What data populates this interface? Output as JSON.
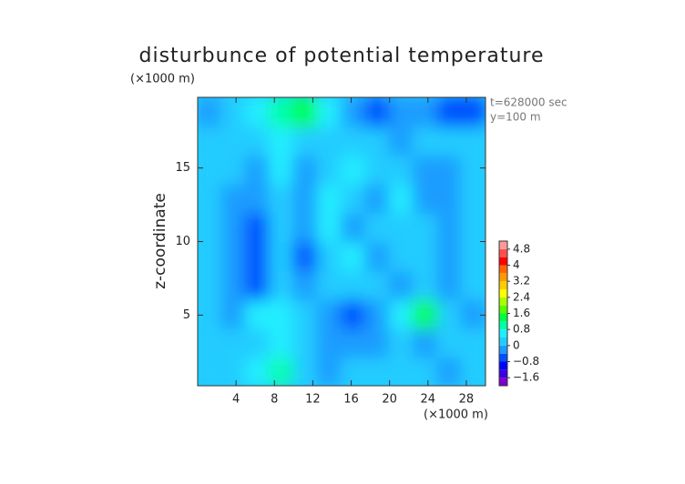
{
  "chart_data": {
    "type": "contour",
    "title": "disturbunce of potential temperature",
    "y_unit": "(×1000 m)",
    "x_unit": "(×1000 m)",
    "ylabel": "z-coordinate",
    "annotations": [
      "t=628000 sec",
      "y=100 m"
    ],
    "xlim": [
      0,
      30
    ],
    "ylim": [
      0.2,
      19.8
    ],
    "xticks": [
      4,
      8,
      12,
      16,
      20,
      24,
      28
    ],
    "yticks": [
      5,
      10,
      15
    ],
    "field": [
      [
        0.2,
        0.2,
        0.4,
        0.8,
        0.2,
        -0.2,
        0.2,
        0.2,
        0,
        0,
        -0.2,
        0.2
      ],
      [
        0.2,
        0.2,
        0.2,
        0.4,
        0,
        -0.2,
        -0.4,
        -0.2,
        0,
        -0.4,
        0,
        0.2
      ],
      [
        0,
        -0.2,
        0.4,
        0.4,
        0,
        -0.4,
        -0.8,
        -0.4,
        0.6,
        1.2,
        0,
        -0.2
      ],
      [
        0,
        -0.4,
        -0.6,
        0.2,
        -0.4,
        0,
        0.2,
        0.2,
        -0.4,
        0.2,
        -0.4,
        0
      ],
      [
        0.2,
        -0.4,
        -0.6,
        0.2,
        -0.6,
        0.2,
        0.4,
        -0.4,
        0,
        0.2,
        -0.4,
        0.2
      ],
      [
        0.2,
        -0.2,
        -0.6,
        0.2,
        -0.4,
        0.4,
        -0.4,
        0,
        0.2,
        0,
        -0.4,
        0.2
      ],
      [
        0.2,
        -0.2,
        -0.4,
        0.2,
        -0.4,
        0.4,
        0.2,
        -0.2,
        0.4,
        -0.2,
        -0.4,
        0.2
      ],
      [
        0.2,
        0,
        -0.4,
        0.4,
        -0.4,
        0.2,
        0.4,
        0.2,
        0.2,
        -0.2,
        -0.2,
        0.2
      ],
      [
        0.2,
        0.2,
        0.2,
        0.6,
        0.2,
        0,
        0,
        0.2,
        -0.2,
        0.2,
        0.2,
        0
      ],
      [
        -0.4,
        0.2,
        0.6,
        1.0,
        1.2,
        0.4,
        -0.4,
        -0.6,
        -0.4,
        -0.4,
        -0.6,
        -0.8
      ]
    ],
    "colorbar": {
      "levels": [
        -2,
        -1.6,
        -1.2,
        -0.8,
        -0.4,
        0,
        0.4,
        0.8,
        1.2,
        1.6,
        2,
        2.4,
        2.8,
        3.2,
        3.6,
        4,
        4.4,
        4.8,
        5.2
      ],
      "colors": [
        "#7b00d0",
        "#3a00e0",
        "#0000ff",
        "#0050ff",
        "#1a9cff",
        "#22ccff",
        "#22eeff",
        "#00ffaa",
        "#00ff44",
        "#55ff00",
        "#aaff00",
        "#ffff00",
        "#ffcc00",
        "#ff9900",
        "#ff6600",
        "#ff0000",
        "#ff5050",
        "#ff9999"
      ],
      "ticks": [
        {
          "value": -1.6,
          "label": "−1.6"
        },
        {
          "value": -0.8,
          "label": "−0.8"
        },
        0,
        0.8,
        1.6,
        2.4,
        3.2,
        4,
        4.8
      ]
    }
  }
}
